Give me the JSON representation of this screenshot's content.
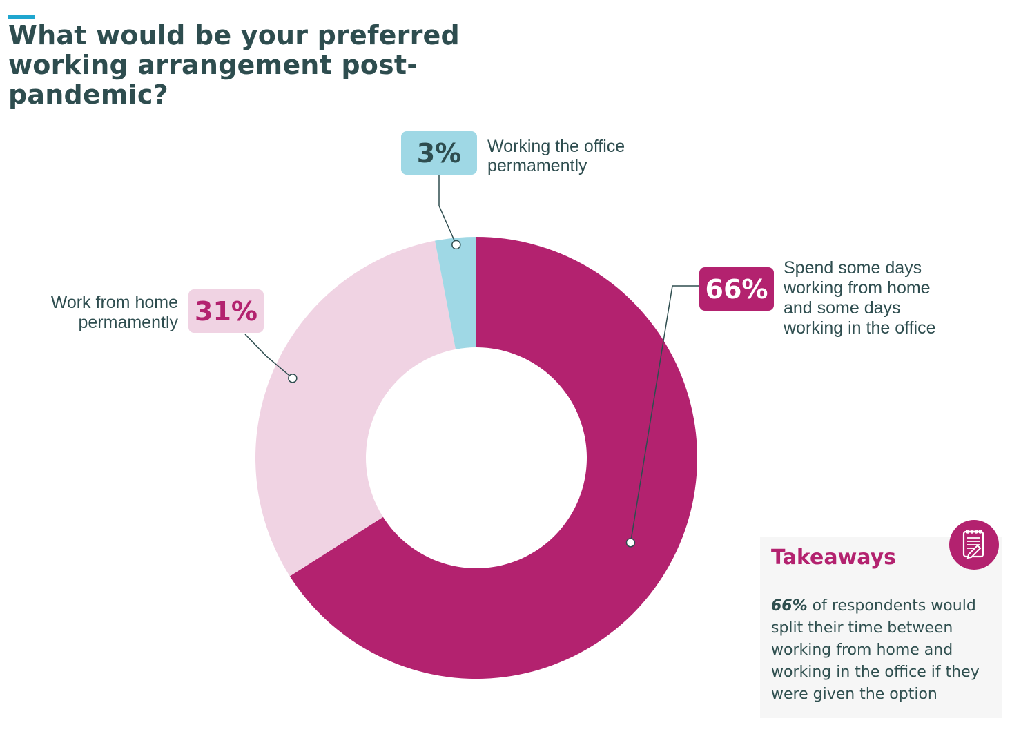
{
  "page": {
    "title": "What would be your preferred working arrangement post-pandemic?",
    "accent_color": "#1fa6cf",
    "title_color": "#2e4d4f"
  },
  "chart_data": {
    "type": "pie",
    "title": "What would be your preferred working arrangement post-pandemic?",
    "donut": true,
    "slices": [
      {
        "label": "Spend some days working from home and some days working in the office",
        "label_lines": [
          "Spend some days",
          "working from home",
          "and some days",
          "working in the office"
        ],
        "value": 66,
        "value_label": "66%",
        "color": "#b3226f",
        "badge_color": "#b3226f",
        "badge_text_color": "#ffffff"
      },
      {
        "label": "Work from home permamently",
        "label_lines": [
          "Work from home",
          "permamently"
        ],
        "value": 31,
        "value_label": "31%",
        "color": "#f0d3e3",
        "badge_color": "#f0d3e3",
        "badge_text_color": "#b3226f"
      },
      {
        "label": "Working the office permamently",
        "label_lines": [
          "Working the office",
          "permamently"
        ],
        "value": 3,
        "value_label": "3%",
        "color": "#9fd8e5",
        "badge_color": "#9fd8e5",
        "badge_text_color": "#2e4d4f"
      }
    ],
    "start_angle_deg": 0,
    "direction": "clockwise"
  },
  "takeaways": {
    "title": "Takeaways",
    "highlight": "66%",
    "text": " of respondents would split their time between working from home and working in the office if they were given the option",
    "icon": "notepad-icon",
    "title_color": "#b3226f",
    "card_background": "#f6f6f6"
  }
}
